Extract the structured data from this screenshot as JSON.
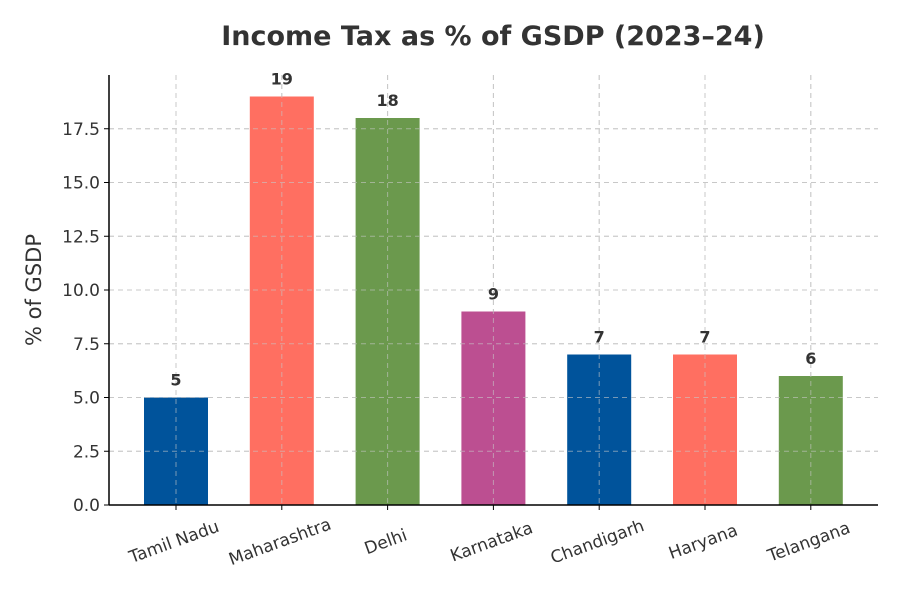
{
  "chart_data": {
    "type": "bar",
    "title": "Income Tax as % of GSDP (2023–24)",
    "xlabel": "",
    "ylabel": "% of GSDP",
    "categories": [
      "Tamil Nadu",
      "Maharashtra",
      "Delhi",
      "Karnataka",
      "Chandigarh",
      "Haryana",
      "Telangana"
    ],
    "values": [
      5,
      19,
      18,
      9,
      7,
      7,
      6
    ],
    "data_labels": [
      "5",
      "19",
      "18",
      "9",
      "7",
      "7",
      "6"
    ],
    "colors": [
      "#00539b",
      "#ff6f61",
      "#6b994d",
      "#bc4f91",
      "#00539b",
      "#ff6f61",
      "#6b994d"
    ],
    "ylim": [
      0,
      20
    ],
    "yticks": [
      0,
      2.5,
      5,
      7.5,
      10,
      12.5,
      15,
      17.5
    ],
    "ytick_labels": [
      "0.0",
      "2.5",
      "5.0",
      "7.5",
      "10.0",
      "12.5",
      "15.0",
      "17.5"
    ],
    "grid": true,
    "legend": "none"
  }
}
